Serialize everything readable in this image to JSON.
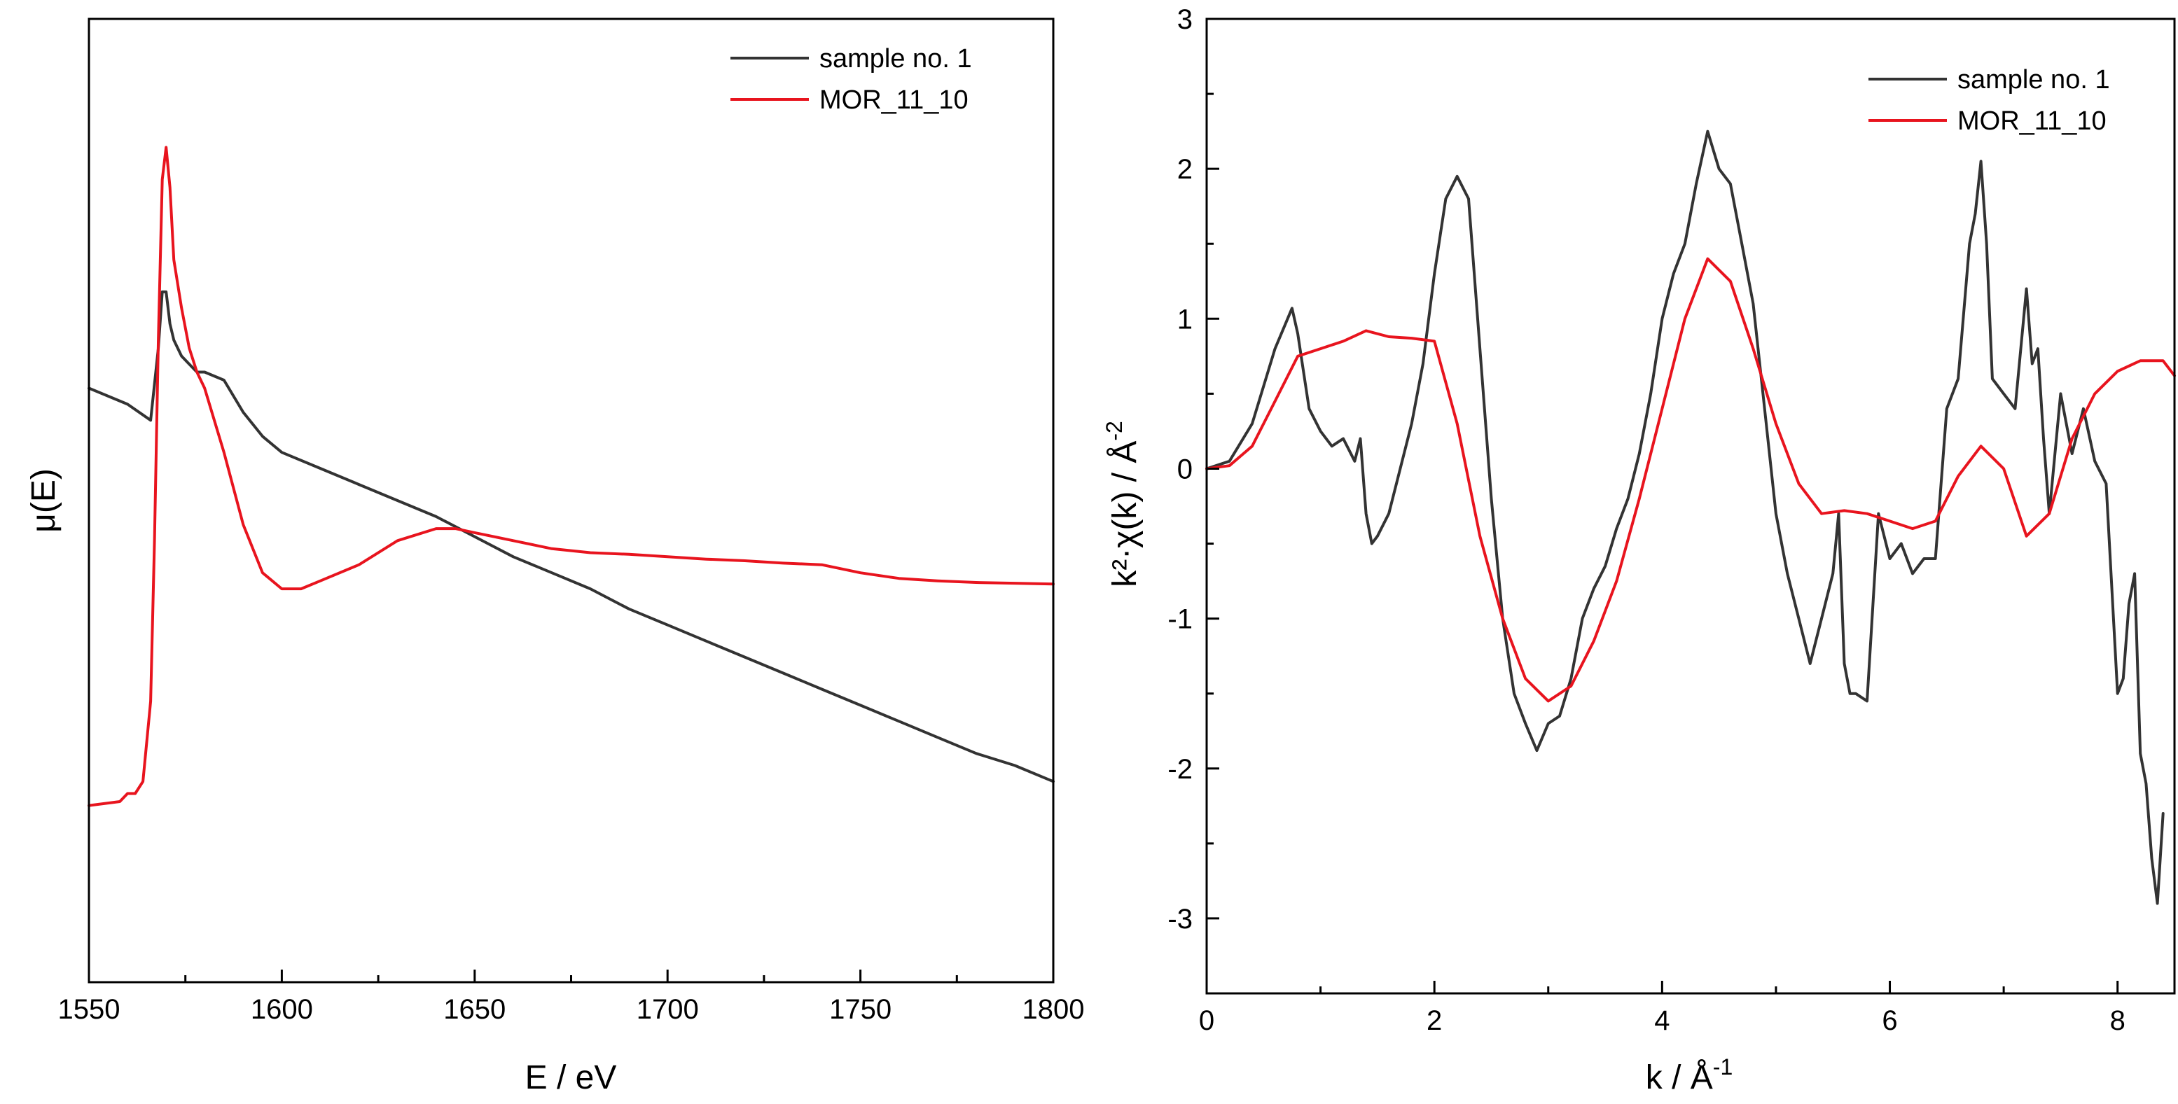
{
  "chart_data": [
    {
      "id": "xanes",
      "type": "line",
      "title": "",
      "xlabel": "E / eV",
      "ylabel": "μ(E)",
      "xlim": [
        1550,
        1800
      ],
      "ylim": [
        0,
        1.2
      ],
      "xticks": [
        1550,
        1600,
        1650,
        1700,
        1750,
        1800
      ],
      "xtick_labels": [
        "1550",
        "1600",
        "1650",
        "1700",
        "1750",
        "1800"
      ],
      "show_y_tick_labels": false,
      "grid": false,
      "legend_position": "top-right",
      "series": [
        {
          "name": "sample no. 1",
          "color": "#333333",
          "x": [
            1550,
            1560,
            1566,
            1568,
            1569,
            1570,
            1571,
            1572,
            1574,
            1576,
            1578,
            1580,
            1585,
            1590,
            1595,
            1600,
            1610,
            1620,
            1630,
            1640,
            1650,
            1660,
            1670,
            1680,
            1690,
            1700,
            1710,
            1720,
            1730,
            1740,
            1750,
            1760,
            1770,
            1780,
            1790,
            1800
          ],
          "y": [
            0.74,
            0.72,
            0.7,
            0.79,
            0.86,
            0.86,
            0.82,
            0.8,
            0.78,
            0.77,
            0.76,
            0.76,
            0.75,
            0.71,
            0.68,
            0.66,
            0.64,
            0.62,
            0.6,
            0.58,
            0.555,
            0.53,
            0.51,
            0.49,
            0.465,
            0.445,
            0.425,
            0.405,
            0.385,
            0.365,
            0.345,
            0.325,
            0.305,
            0.285,
            0.27,
            0.25
          ]
        },
        {
          "name": "MOR_11_10",
          "color": "#e8141e",
          "x": [
            1550,
            1558,
            1560,
            1562,
            1564,
            1566,
            1567,
            1568,
            1569,
            1570,
            1571,
            1572,
            1574,
            1576,
            1578,
            1580,
            1585,
            1590,
            1595,
            1600,
            1605,
            1610,
            1620,
            1630,
            1640,
            1645,
            1650,
            1660,
            1670,
            1680,
            1690,
            1700,
            1710,
            1720,
            1730,
            1740,
            1750,
            1760,
            1770,
            1780,
            1790,
            1800
          ],
          "y": [
            0.22,
            0.225,
            0.235,
            0.235,
            0.25,
            0.35,
            0.55,
            0.8,
            1.0,
            1.04,
            0.99,
            0.9,
            0.84,
            0.79,
            0.76,
            0.74,
            0.66,
            0.57,
            0.51,
            0.49,
            0.49,
            0.5,
            0.52,
            0.55,
            0.565,
            0.565,
            0.56,
            0.55,
            0.54,
            0.535,
            0.533,
            0.53,
            0.527,
            0.525,
            0.522,
            0.52,
            0.51,
            0.503,
            0.5,
            0.498,
            0.497,
            0.496
          ]
        }
      ]
    },
    {
      "id": "exafs",
      "type": "line",
      "title": "",
      "xlabel": "k / Å",
      "xlabel_sup": "-1",
      "ylabel": "k²·χ(k) / Å",
      "ylabel_sup": "-2",
      "xlim": [
        0,
        8.5
      ],
      "ylim": [
        -3.5,
        3
      ],
      "xticks": [
        0,
        2,
        4,
        6,
        8
      ],
      "xtick_labels": [
        "0",
        "2",
        "4",
        "6",
        "8"
      ],
      "yticks": [
        -3,
        -2,
        -1,
        0,
        1,
        2,
        3
      ],
      "ytick_labels": [
        "-3",
        "-2",
        "-1",
        "0",
        "1",
        "2",
        "3"
      ],
      "grid": false,
      "legend_position": "top-right",
      "series": [
        {
          "name": "sample no. 1",
          "color": "#333333",
          "x": [
            0,
            0.2,
            0.4,
            0.6,
            0.75,
            0.8,
            0.9,
            1.0,
            1.1,
            1.2,
            1.3,
            1.35,
            1.4,
            1.45,
            1.5,
            1.6,
            1.7,
            1.8,
            1.9,
            2.0,
            2.1,
            2.2,
            2.3,
            2.4,
            2.5,
            2.6,
            2.7,
            2.8,
            2.9,
            3.0,
            3.1,
            3.2,
            3.3,
            3.4,
            3.5,
            3.6,
            3.7,
            3.8,
            3.9,
            4.0,
            4.1,
            4.2,
            4.3,
            4.4,
            4.5,
            4.6,
            4.7,
            4.8,
            4.9,
            5.0,
            5.1,
            5.2,
            5.3,
            5.4,
            5.5,
            5.55,
            5.6,
            5.65,
            5.7,
            5.8,
            5.9,
            6.0,
            6.1,
            6.2,
            6.3,
            6.4,
            6.5,
            6.6,
            6.7,
            6.75,
            6.8,
            6.85,
            6.9,
            7.0,
            7.1,
            7.2,
            7.25,
            7.3,
            7.35,
            7.4,
            7.5,
            7.6,
            7.7,
            7.8,
            7.9,
            8.0,
            8.05,
            8.1,
            8.15,
            8.2,
            8.25,
            8.3,
            8.35,
            8.4
          ],
          "y": [
            0.0,
            0.05,
            0.3,
            0.8,
            1.07,
            0.9,
            0.4,
            0.25,
            0.15,
            0.2,
            0.05,
            0.2,
            -0.3,
            -0.5,
            -0.45,
            -0.3,
            0.0,
            0.3,
            0.7,
            1.3,
            1.8,
            1.95,
            1.8,
            0.8,
            -0.2,
            -1.0,
            -1.5,
            -1.7,
            -1.88,
            -1.7,
            -1.65,
            -1.4,
            -1.0,
            -0.8,
            -0.65,
            -0.4,
            -0.2,
            0.1,
            0.5,
            1.0,
            1.3,
            1.5,
            1.9,
            2.25,
            2.0,
            1.9,
            1.5,
            1.1,
            0.4,
            -0.3,
            -0.7,
            -1.0,
            -1.3,
            -1.0,
            -0.7,
            -0.3,
            -1.3,
            -1.5,
            -1.5,
            -1.55,
            -0.3,
            -0.6,
            -0.5,
            -0.7,
            -0.6,
            -0.6,
            0.4,
            0.6,
            1.5,
            1.7,
            2.05,
            1.5,
            0.6,
            0.5,
            0.4,
            1.2,
            0.7,
            0.8,
            0.2,
            -0.3,
            0.5,
            0.1,
            0.4,
            0.05,
            -0.1,
            -1.5,
            -1.4,
            -0.9,
            -0.7,
            -1.9,
            -2.1,
            -2.6,
            -2.9,
            -2.3
          ]
        },
        {
          "name": "MOR_11_10",
          "color": "#e8141e",
          "x": [
            0,
            0.2,
            0.4,
            0.6,
            0.8,
            1.0,
            1.2,
            1.4,
            1.6,
            1.8,
            2.0,
            2.2,
            2.4,
            2.6,
            2.8,
            3.0,
            3.2,
            3.4,
            3.6,
            3.8,
            4.0,
            4.2,
            4.4,
            4.6,
            4.8,
            5.0,
            5.2,
            5.4,
            5.6,
            5.8,
            6.0,
            6.2,
            6.4,
            6.6,
            6.8,
            7.0,
            7.2,
            7.4,
            7.6,
            7.8,
            8.0,
            8.2,
            8.4,
            8.5
          ],
          "y": [
            0.0,
            0.02,
            0.15,
            0.45,
            0.75,
            0.8,
            0.85,
            0.92,
            0.88,
            0.87,
            0.85,
            0.3,
            -0.45,
            -1.0,
            -1.4,
            -1.55,
            -1.45,
            -1.15,
            -0.75,
            -0.2,
            0.4,
            1.0,
            1.4,
            1.25,
            0.8,
            0.3,
            -0.1,
            -0.3,
            -0.28,
            -0.3,
            -0.35,
            -0.4,
            -0.35,
            -0.05,
            0.15,
            0.0,
            -0.45,
            -0.3,
            0.2,
            0.5,
            0.65,
            0.72,
            0.72,
            0.62
          ]
        }
      ]
    }
  ]
}
